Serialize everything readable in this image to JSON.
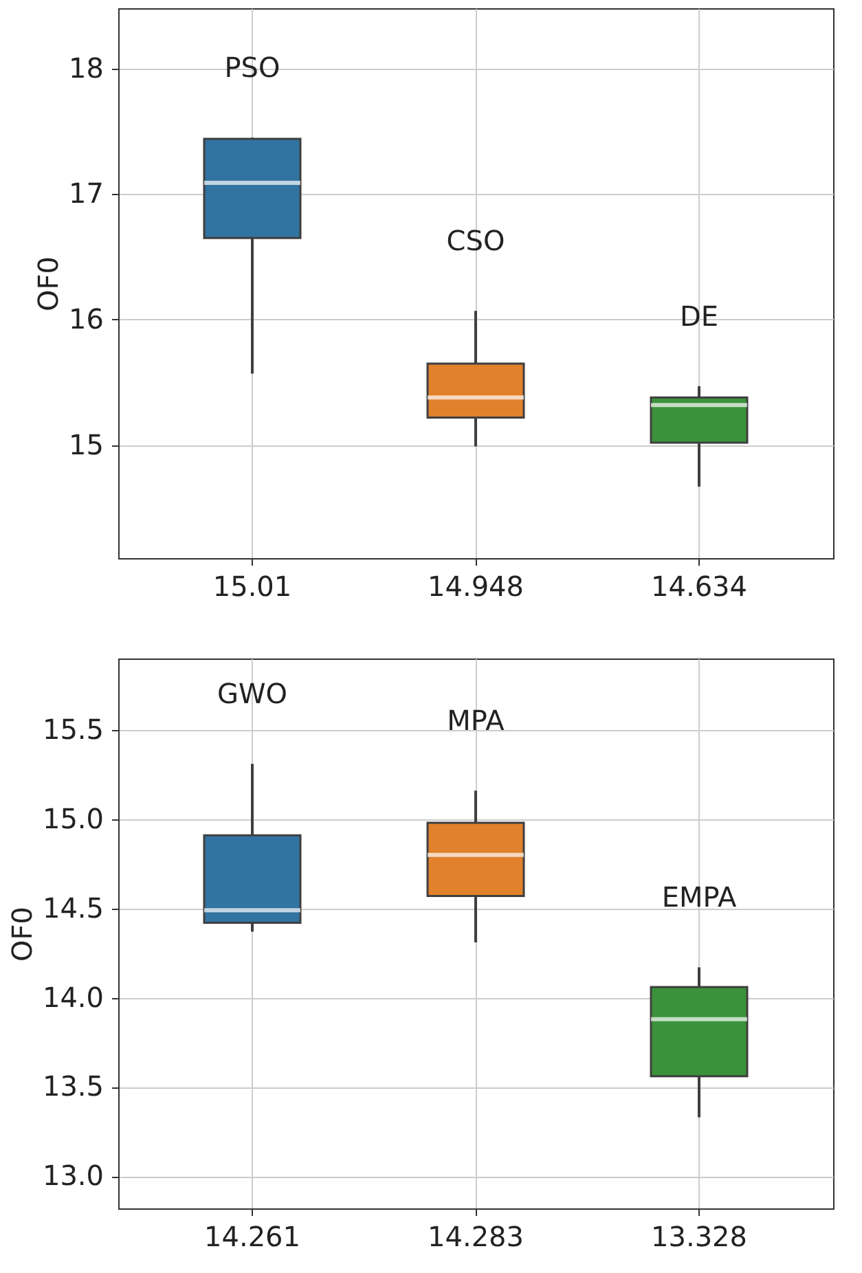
{
  "chart_data": [
    {
      "type": "box",
      "ylabel": "OF0",
      "categories": [
        "15.01",
        "14.948",
        "14.634"
      ],
      "colors": [
        "#3274a1",
        "#e1812c",
        "#3a923a"
      ],
      "boxes": [
        {
          "low": 15.57,
          "q1": 16.65,
          "median": 17.09,
          "q3": 17.44,
          "high": 17.45
        },
        {
          "low": 14.99,
          "q1": 15.22,
          "median": 15.38,
          "q3": 15.65,
          "high": 16.07
        },
        {
          "low": 14.67,
          "q1": 15.02,
          "median": 15.32,
          "q3": 15.38,
          "high": 15.47
        }
      ],
      "ylim": [
        14.1,
        18.48
      ],
      "yticks": [
        15,
        16,
        17,
        18
      ],
      "grid": true,
      "annotations": [
        "PSO",
        "CSO",
        "DE"
      ]
    },
    {
      "type": "box",
      "ylabel": "OF0",
      "categories": [
        "14.261",
        "14.283",
        "13.328"
      ],
      "colors": [
        "#3274a1",
        "#e1812c",
        "#3a923a"
      ],
      "boxes": [
        {
          "low": 14.37,
          "q1": 14.42,
          "median": 14.49,
          "q3": 14.91,
          "high": 15.31
        },
        {
          "low": 14.31,
          "q1": 14.57,
          "median": 14.8,
          "q3": 14.98,
          "high": 15.16
        },
        {
          "low": 13.33,
          "q1": 13.56,
          "median": 13.88,
          "q3": 14.06,
          "high": 14.17
        }
      ],
      "ylim": [
        12.82,
        15.9
      ],
      "yticks": [
        {
          "value": 13,
          "label": "13.0"
        },
        13.5,
        {
          "value": 14,
          "label": "14.0"
        },
        14.5,
        {
          "value": 15,
          "label": "15.0"
        },
        15.5
      ],
      "grid": true,
      "annotations": [
        "GWO",
        "MPA",
        "EMPA"
      ]
    }
  ]
}
